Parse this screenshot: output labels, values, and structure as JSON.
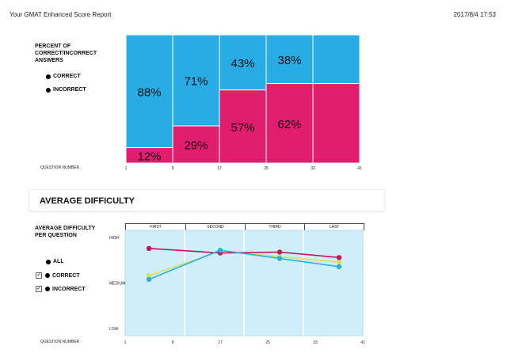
{
  "header": {
    "title": "Your GMAT Enhanced Score Report",
    "datetime": "2017/8/4 17:53"
  },
  "section1": {
    "label_lines": [
      "PERCENT OF",
      "CORRECT/INCORRECT",
      "ANSWERS"
    ],
    "legend": [
      {
        "label": "CORRECT",
        "color": "#29ace5"
      },
      {
        "label": "INCORRECT",
        "color": "#e11d6e"
      }
    ],
    "xlabel": "QUESTION NUMBER"
  },
  "section2": {
    "heading": "AVERAGE DIFFICULTY",
    "label_lines": [
      "AVERAGE DIFFICULTY",
      "PER QUESTION"
    ],
    "legend": [
      {
        "label": "ALL",
        "checkbox": false,
        "color": "#c2185b"
      },
      {
        "label": "CORRECT",
        "checkbox": true,
        "check_mark": "✓",
        "color": "#2bb0e0"
      },
      {
        "label": "INCORRECT",
        "checkbox": true,
        "check_mark": "✓",
        "color": "#d8e05a"
      }
    ],
    "xlabel": "QUESTION NUMBER"
  },
  "chart_data": [
    {
      "type": "bar",
      "stacked": true,
      "categories": [
        "1-9",
        "9-17",
        "17-25",
        "25-33",
        "33-41"
      ],
      "series": [
        {
          "name": "INCORRECT",
          "values": [
            12,
            29,
            57,
            62,
            62
          ],
          "color": "#e11d6e"
        },
        {
          "name": "CORRECT",
          "values": [
            88,
            71,
            43,
            38,
            38
          ],
          "color": "#29ace5"
        }
      ],
      "data_labels": [
        {
          "bar": 0,
          "correct": "88%",
          "incorrect": "12%"
        },
        {
          "bar": 1,
          "correct": "71%",
          "incorrect": "29%"
        },
        {
          "bar": 2,
          "correct": "43%",
          "incorrect": "57%"
        },
        {
          "bar": 3,
          "correct": "38%",
          "incorrect": "62%"
        }
      ],
      "x_ticks": [
        "1",
        "9",
        "17",
        "25",
        "33",
        "41"
      ],
      "xlabel": "QUESTION NUMBER",
      "ylim": [
        0,
        100
      ]
    },
    {
      "type": "line",
      "periods": [
        "FIRST",
        "SECOND",
        "THIRD",
        "LAST"
      ],
      "x_ticks": [
        "1",
        "9",
        "17",
        "25",
        "33",
        "41"
      ],
      "y_ticks": [
        "HIGH",
        "MEDIUM",
        "LOW"
      ],
      "xlabel": "QUESTION NUMBER",
      "xlim": [
        1,
        41
      ],
      "ylim": [
        0,
        100
      ],
      "x": [
        5,
        17,
        27,
        37
      ],
      "series": [
        {
          "name": "INCORRECT",
          "values": [
            58,
            85,
            79,
            73
          ],
          "color": "#d8e05a"
        },
        {
          "name": "ALL",
          "values": [
            88,
            83,
            84,
            78
          ],
          "color": "#c2185b"
        },
        {
          "name": "CORRECT",
          "values": [
            54,
            86,
            77,
            68
          ],
          "color": "#2bb0e0"
        }
      ]
    }
  ]
}
